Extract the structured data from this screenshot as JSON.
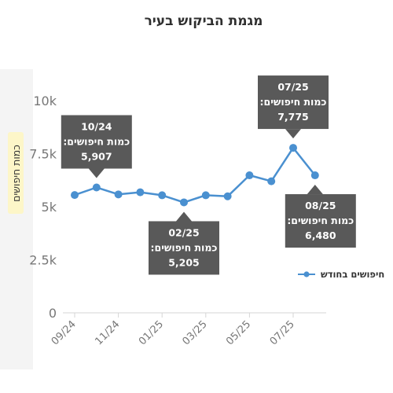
{
  "chart_data": {
    "type": "line",
    "title": "מגמת הביקוש בעיר",
    "ylabel": "כמות חיפושים",
    "xlabel": "",
    "ylim": [
      0,
      10000
    ],
    "y_ticks": [
      "0",
      "2.5k",
      "5k",
      "7.5k",
      "10k"
    ],
    "x_tick_labels": [
      "09/24",
      "11/24",
      "01/25",
      "03/25",
      "05/25",
      "07/25"
    ],
    "x": [
      "09/24",
      "10/24",
      "11/24",
      "12/24",
      "01/25",
      "02/25",
      "03/25",
      "04/25",
      "05/25",
      "06/25",
      "07/25",
      "08/25"
    ],
    "series": [
      {
        "name": "חיפושים בחודש",
        "color": "#4a90d0",
        "values": [
          5550,
          5907,
          5580,
          5680,
          5540,
          5205,
          5540,
          5490,
          6480,
          6200,
          7775,
          6480
        ]
      }
    ],
    "legend_position": "right",
    "grid": false,
    "callouts": [
      {
        "month": "10/24",
        "label": "כמות חיפושים:",
        "value": "5,907"
      },
      {
        "month": "02/25",
        "label": "כמות חיפושים:",
        "value": "5,205"
      },
      {
        "month": "07/25",
        "label": "כמות חיפושים:",
        "value": "7,775"
      },
      {
        "month": "08/25",
        "label": "כמות חיפושים:",
        "value": "6,480"
      }
    ],
    "callout_color": "#595959"
  }
}
